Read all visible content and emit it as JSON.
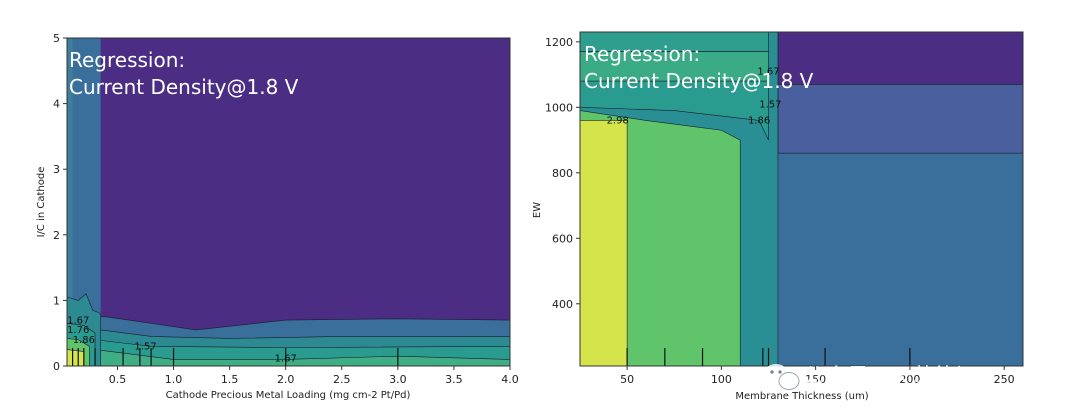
{
  "watermark": {
    "text": "公众号 · 天苏能源",
    "icon": "wechat-icon"
  },
  "chart_data": [
    {
      "type": "heatmap",
      "subtype": "contour",
      "overlay_lines": [
        "Regression:",
        "Current Density@1.8 V"
      ],
      "xlabel": "Cathode Precious Metal Loading (mg cm-2 Pt/Pd)",
      "ylabel": "I/C in Cathode",
      "xlim": [
        0.05,
        4.0
      ],
      "ylim": [
        0,
        5
      ],
      "xticks": [
        0.5,
        1.0,
        1.5,
        2.0,
        2.5,
        3.0,
        3.5,
        4.0
      ],
      "xtick_labels": [
        "0.5",
        "1.0",
        "1.5",
        "2.0",
        "2.5",
        "3.0",
        "3.5",
        "4.0"
      ],
      "yticks": [
        0,
        1,
        2,
        3,
        4,
        5
      ],
      "ytick_labels": [
        "0",
        "1",
        "2",
        "3",
        "4",
        "5"
      ],
      "contour_labels": [
        {
          "text": "1.67",
          "x": 0.15,
          "y": 0.65
        },
        {
          "text": "1.76",
          "x": 0.15,
          "y": 0.5
        },
        {
          "text": "1.86",
          "x": 0.2,
          "y": 0.35
        },
        {
          "text": "1.57",
          "x": 0.75,
          "y": 0.25
        },
        {
          "text": "1.67",
          "x": 2.0,
          "y": 0.07
        }
      ],
      "colors": {
        "low": "#4b2d83",
        "mid_low": "#3a6e9b",
        "mid": "#2a9c8f",
        "mid_high": "#5fc46a",
        "high": "#d4e44a"
      }
    },
    {
      "type": "heatmap",
      "subtype": "contour",
      "overlay_lines": [
        "Regression:",
        "Current Density@1.8 V"
      ],
      "xlabel": "Membrane Thickness (um)",
      "ylabel": "EW",
      "xlim": [
        25,
        260
      ],
      "ylim": [
        210,
        1230
      ],
      "xticks": [
        50,
        100,
        150,
        200,
        250
      ],
      "xtick_labels": [
        "50",
        "100",
        "150",
        "200",
        "250"
      ],
      "yticks": [
        400,
        600,
        800,
        1000,
        1200
      ],
      "ytick_labels": [
        "400",
        "600",
        "800",
        "1000",
        "1200"
      ],
      "contour_labels": [
        {
          "text": "2.98",
          "x": 45,
          "y": 950
        },
        {
          "text": "1.67",
          "x": 125,
          "y": 1100
        },
        {
          "text": "1.57",
          "x": 126,
          "y": 1000
        },
        {
          "text": "1.86",
          "x": 120,
          "y": 950
        }
      ],
      "colors": {
        "low": "#4b2d83",
        "mid_low": "#3a6e9b",
        "mid": "#2a9c8f",
        "mid_high": "#5fc46a",
        "high": "#d4e44a"
      }
    }
  ]
}
